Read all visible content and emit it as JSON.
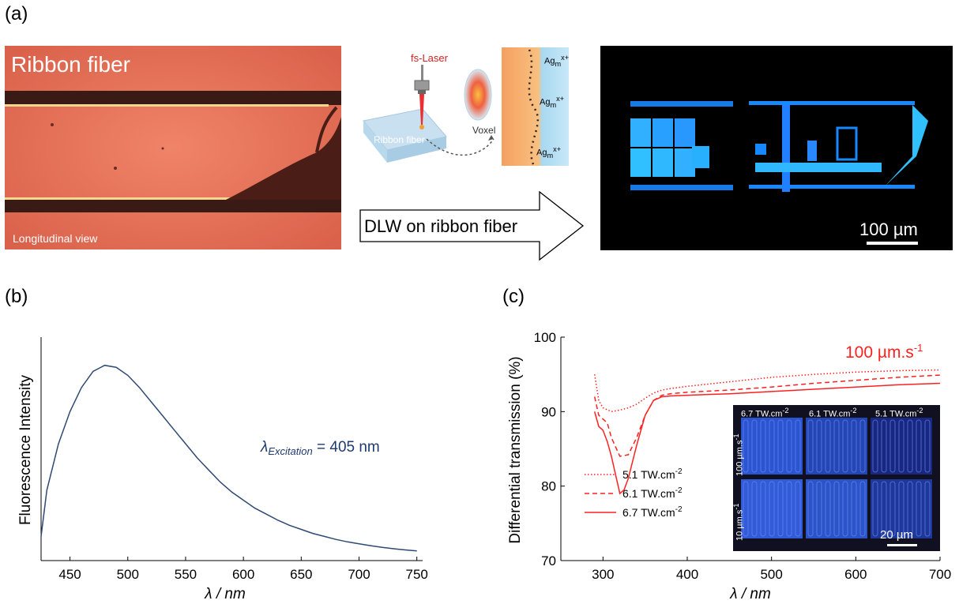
{
  "panel_a": {
    "label": "(a)",
    "photo_title": "Ribbon fiber",
    "photo_subtitle": "Longitudinal view",
    "schematic": {
      "laser": "fs-Laser",
      "fiber": "Ribbon fiber",
      "voxel": "Voxel",
      "ag_label_main": "Ag",
      "ag_label_sub": "m",
      "ag_label_sup": "x+"
    },
    "arrow_text": "DLW on ribbon fiber",
    "scale_bar": "100 µm",
    "colors": {
      "photo": "#e87058",
      "fluorescence": "#1a8fff"
    }
  },
  "panel_b": {
    "label": "(b)",
    "annotation_main": "λ",
    "annotation_sub": "Excitation",
    "annotation_value": " = 405 nm",
    "chart_data": {
      "type": "line",
      "xlabel": "λ / nm",
      "ylabel": "Fluorescence Intensity",
      "xlim": [
        425,
        755
      ],
      "xticks": [
        450,
        500,
        550,
        600,
        650,
        700,
        750
      ],
      "color": "#2e4a73",
      "x": [
        425,
        430,
        440,
        450,
        460,
        470,
        480,
        490,
        500,
        510,
        520,
        530,
        540,
        550,
        560,
        570,
        580,
        590,
        600,
        610,
        620,
        630,
        640,
        650,
        660,
        670,
        680,
        690,
        700,
        710,
        720,
        730,
        740,
        750
      ],
      "y": [
        0.12,
        0.35,
        0.58,
        0.74,
        0.86,
        0.94,
        0.97,
        0.96,
        0.92,
        0.86,
        0.79,
        0.72,
        0.65,
        0.58,
        0.51,
        0.45,
        0.39,
        0.34,
        0.3,
        0.26,
        0.23,
        0.2,
        0.175,
        0.155,
        0.135,
        0.12,
        0.105,
        0.093,
        0.083,
        0.074,
        0.066,
        0.059,
        0.053,
        0.048
      ]
    }
  },
  "panel_c": {
    "label": "(c)",
    "speed_main": "100 µm.s",
    "speed_sup": "-1",
    "legend": [
      {
        "main": "5.1 TW.cm",
        "sup": "-2",
        "style": "dotted"
      },
      {
        "main": "6.1 TW.cm",
        "sup": "-2",
        "style": "dashed"
      },
      {
        "main": "6.7 TW.cm",
        "sup": "-2",
        "style": "solid"
      }
    ],
    "inset": {
      "cols": [
        "6.7 TW.cm",
        "6.1 TW.cm",
        "5.1 TW.cm"
      ],
      "col_sup": "-2",
      "rows": [
        "100 µm.s",
        "10 µm.s"
      ],
      "row_sup": "-1",
      "scale_bar": "20 µm"
    },
    "chart_data": {
      "type": "line",
      "xlabel": "λ / nm",
      "ylabel": "Differential transmission (%)",
      "xlim": [
        250,
        700
      ],
      "ylim": [
        70,
        100
      ],
      "xticks": [
        300,
        400,
        500,
        600,
        700
      ],
      "yticks": [
        70,
        80,
        90,
        100
      ],
      "color": "#ff2020",
      "series": [
        {
          "name": "5.1 TW.cm-2",
          "x": [
            290,
            295,
            300,
            310,
            320,
            330,
            340,
            350,
            360,
            370,
            380,
            400,
            450,
            500,
            550,
            600,
            650,
            700
          ],
          "y": [
            95.0,
            91.5,
            90.5,
            90.0,
            90.2,
            90.5,
            91.0,
            91.8,
            92.5,
            92.9,
            93.1,
            93.4,
            94.0,
            94.6,
            95.0,
            95.3,
            95.5,
            95.6
          ]
        },
        {
          "name": "6.1 TW.cm-2",
          "x": [
            290,
            295,
            300,
            305,
            310,
            320,
            330,
            340,
            350,
            360,
            370,
            380,
            400,
            450,
            500,
            550,
            600,
            650,
            700
          ],
          "y": [
            92.0,
            89.5,
            89.0,
            88.5,
            86.5,
            84.0,
            84.2,
            86.5,
            89.5,
            91.5,
            92.2,
            92.4,
            92.6,
            92.9,
            93.3,
            93.8,
            94.2,
            94.6,
            94.9
          ]
        },
        {
          "name": "6.7 TW.cm-2",
          "x": [
            290,
            295,
            300,
            305,
            310,
            315,
            320,
            325,
            330,
            340,
            350,
            360,
            370,
            380,
            400,
            450,
            500,
            550,
            600,
            650,
            700
          ],
          "y": [
            90.0,
            88.0,
            87.5,
            86.0,
            84.0,
            81.5,
            79.0,
            79.5,
            81.0,
            85.5,
            89.5,
            91.5,
            92.0,
            92.1,
            92.2,
            92.4,
            92.7,
            93.0,
            93.3,
            93.6,
            93.8
          ]
        }
      ]
    }
  }
}
